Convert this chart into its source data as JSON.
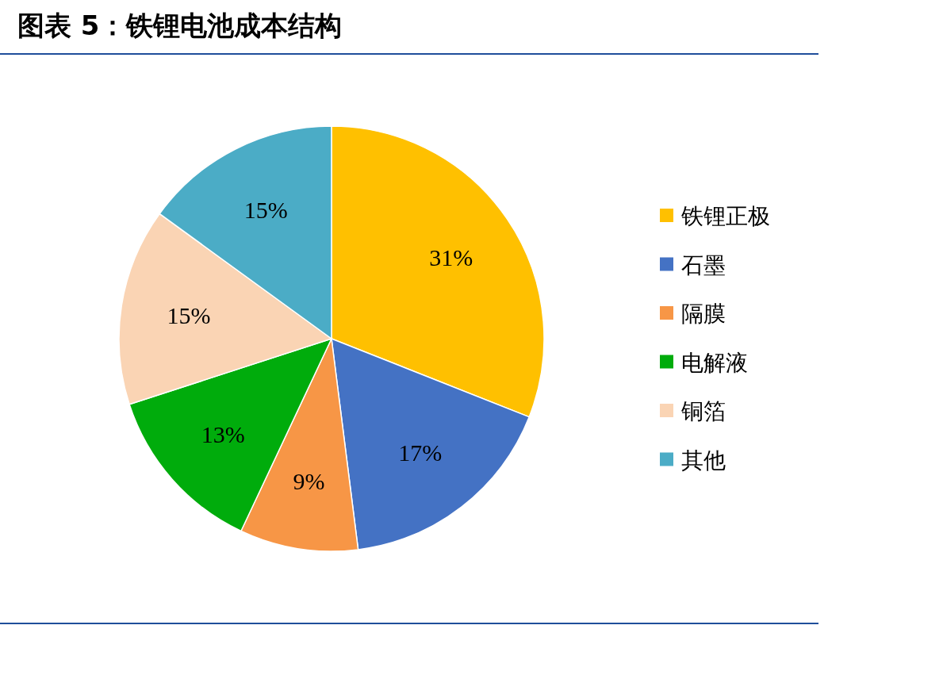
{
  "chart_data": {
    "type": "pie",
    "title": "图表 5：铁锂电池成本结构",
    "categories": [
      "铁锂正极",
      "石墨",
      "隔膜",
      "电解液",
      "铜箔",
      "其他"
    ],
    "values": [
      31,
      17,
      9,
      13,
      15,
      15
    ],
    "value_labels": [
      "31%",
      "17%",
      "9%",
      "13%",
      "15%",
      "15%"
    ],
    "colors": [
      "#ffc000",
      "#4472c4",
      "#f79646",
      "#00ac0c",
      "#fad4b4",
      "#4bacc6"
    ],
    "legend": "right"
  }
}
